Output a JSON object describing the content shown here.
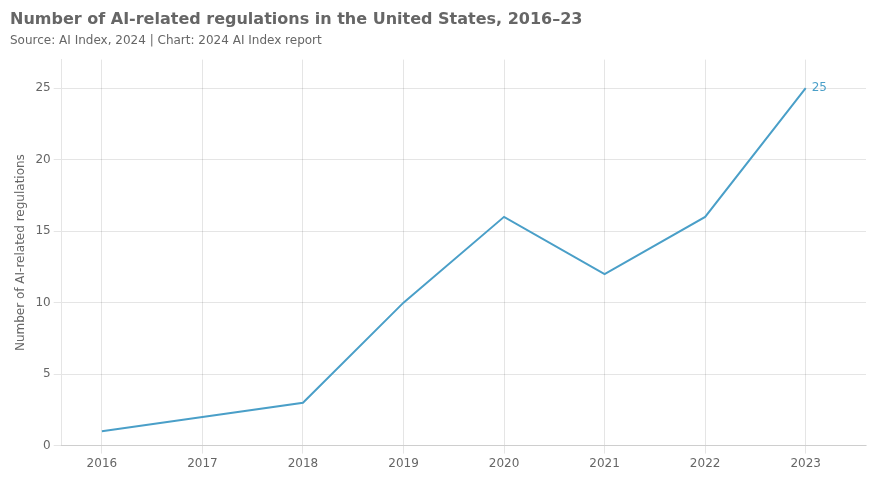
{
  "chart_data": {
    "type": "line",
    "title": "Number of AI-related regulations in the United States, 2016–23",
    "subtitle": "Source: AI Index, 2024 | Chart: 2024 AI Index report",
    "x": [
      2016,
      2017,
      2018,
      2019,
      2020,
      2021,
      2022,
      2023
    ],
    "values": [
      1,
      2,
      3,
      10,
      16,
      12,
      16,
      25
    ],
    "color": "#4a9fc8",
    "ylabel": "Number of AI-related regulations",
    "xlim": [
      2015.6,
      2023.6
    ],
    "xticks": [
      2016,
      2017,
      2018,
      2019,
      2020,
      2021,
      2022,
      2023
    ],
    "ylim": [
      0,
      27
    ],
    "yticks": [
      0,
      5,
      10,
      15,
      20,
      25
    ],
    "grid": true,
    "annotations": [
      {
        "text": "25",
        "x": 2023,
        "y": 25
      }
    ]
  }
}
